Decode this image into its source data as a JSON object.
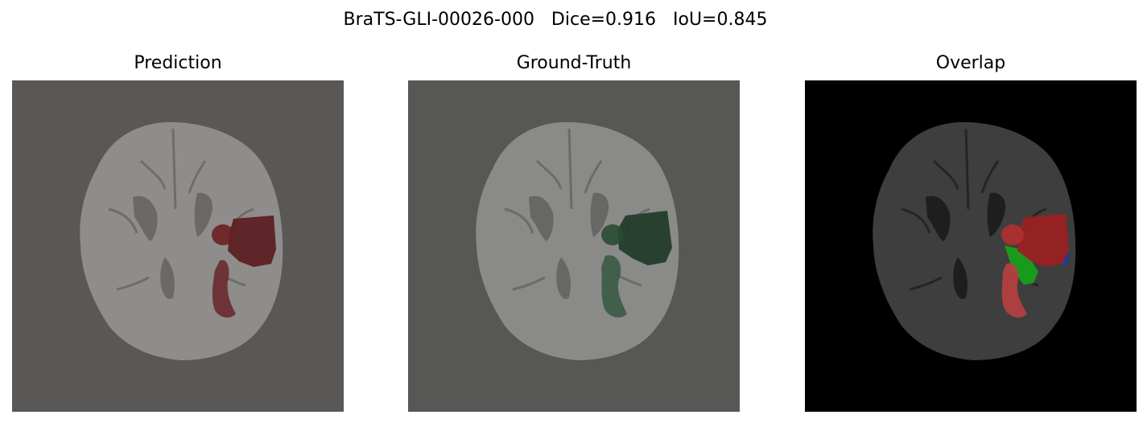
{
  "figure": {
    "title": "BraTS-GLI-00026-000   Dice=0.916   IoU=0.845"
  },
  "panels": [
    {
      "title": "Prediction",
      "background": "#5a5856",
      "mask_color": "#5a1a1e",
      "mask_opacity": 0.85
    },
    {
      "title": "Ground-Truth",
      "background": "#575755",
      "mask_color": "#1f3a28",
      "mask_opacity": 0.9
    },
    {
      "title": "Overlap",
      "background": "#000000",
      "overlap_color": "#9b1f1f",
      "pred_only_color": "#1e3a9e",
      "gt_only_color": "#1a9a1a"
    }
  ],
  "colors": {
    "brain_light": "#8f8f8d",
    "brain_dark": "#3e3e3e"
  }
}
